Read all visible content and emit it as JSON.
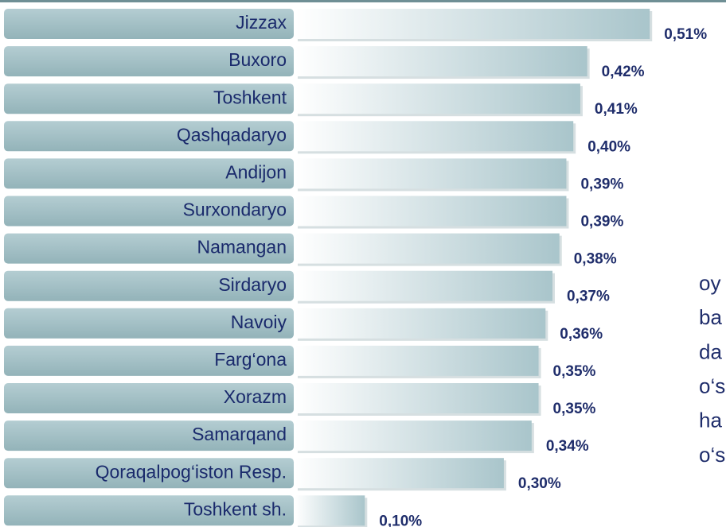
{
  "chart_data": {
    "type": "bar",
    "categories": [
      "Jizzax",
      "Buxoro",
      "Toshkent",
      "Qashqadaryo",
      "Andijon",
      "Surxondaryo",
      "Namangan",
      "Sirdaryo",
      "Navoiy",
      "Farg‘ona",
      "Xorazm",
      "Samarqand",
      "Qoraqalpog‘iston Resp.",
      "Toshkent sh."
    ],
    "values": [
      0.51,
      0.42,
      0.41,
      0.4,
      0.39,
      0.39,
      0.38,
      0.37,
      0.36,
      0.35,
      0.35,
      0.34,
      0.3,
      0.1
    ],
    "value_labels": [
      "0,51%",
      "0,42%",
      "0,41%",
      "0,40%",
      "0,39%",
      "0,39%",
      "0,38%",
      "0,37%",
      "0,36%",
      "0,35%",
      "0,35%",
      "0,34%",
      "0,30%",
      "0,10%"
    ],
    "color": "#a9c5cb",
    "annotations": [
      "oy",
      "ba",
      "da",
      "o‘s",
      "ha",
      "o‘s"
    ]
  }
}
